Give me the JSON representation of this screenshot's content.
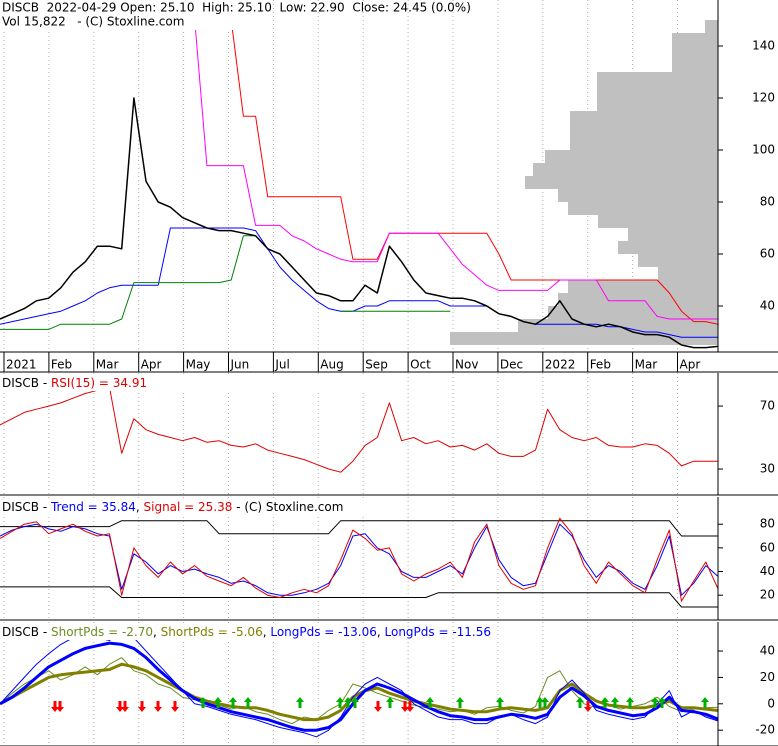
{
  "chart_data": [
    {
      "type": "line",
      "title": "DISCB  2022-04-29 Open: 25.10  High: 25.10  Low: 22.90  Close: 24.45 (0.0%)",
      "subtitle": "Vol 15,822   - (C) Stoxline.com",
      "xticks": [
        "2021",
        "Feb",
        "Mar",
        "Apr",
        "May",
        "Jun",
        "Jul",
        "Aug",
        "Sep",
        "Oct",
        "Nov",
        "Dec",
        "2022",
        "Feb",
        "Mar",
        "Apr"
      ],
      "ylim": [
        22.3,
        157.7
      ],
      "yticks": [
        40,
        60,
        80,
        100,
        120,
        140
      ],
      "volume_profile": {
        "color": "#c0c0c0",
        "xlim": [
          0,
          268
        ],
        "levels": [
          147.5,
          142.5,
          137.5,
          132.5,
          127.5,
          122.5,
          117.5,
          112.5,
          107.5,
          102.5,
          97.5,
          92.5,
          87.5,
          82.5,
          77.5,
          72.5,
          67.5,
          62.5,
          57.5,
          52.5,
          47.5,
          42.5,
          37.5,
          32.5,
          27.5
        ],
        "values": [
          13,
          46,
          46,
          46,
          121,
          121,
          121,
          148,
          148,
          148,
          173,
          185,
          193,
          160,
          150,
          120,
          90,
          100,
          80,
          60,
          150,
          160,
          170,
          200,
          268
        ]
      },
      "series": [
        {
          "color": "#ff0000",
          "line_width": 1,
          "values": [
            null,
            null,
            null,
            null,
            null,
            null,
            null,
            null,
            null,
            null,
            null,
            null,
            null,
            null,
            150,
            150,
            150,
            150,
            150,
            150,
            113,
            113,
            82,
            82,
            82,
            82,
            82,
            82,
            82,
            58,
            58,
            58,
            68,
            68,
            68,
            68,
            68,
            68,
            68,
            68,
            68,
            60,
            50,
            50,
            50,
            50,
            50,
            50,
            50,
            50,
            50,
            50,
            50,
            50,
            50,
            45,
            38,
            34,
            34,
            33
          ]
        },
        {
          "color": "#ff00ff",
          "line_width": 1,
          "values": [
            null,
            null,
            null,
            null,
            null,
            null,
            null,
            null,
            null,
            null,
            null,
            null,
            null,
            null,
            150,
            150,
            150,
            94,
            94,
            94,
            94,
            71,
            71,
            71,
            67,
            65,
            62,
            60,
            58,
            57,
            57,
            57,
            68,
            68,
            68,
            68,
            68,
            62,
            56,
            52,
            48,
            46,
            46,
            46,
            46,
            46,
            50,
            50,
            50,
            50,
            42,
            42,
            42,
            42,
            36,
            35,
            35,
            35,
            35,
            35
          ]
        },
        {
          "color": "#0000ff",
          "line_width": 1,
          "values": [
            33,
            34,
            35,
            36,
            37,
            38,
            40,
            42,
            45,
            47,
            48,
            48,
            48,
            48,
            70,
            70,
            70,
            70,
            70,
            70,
            70,
            69,
            62,
            55,
            50,
            46,
            42,
            39,
            38,
            38,
            40,
            40,
            42,
            42,
            42,
            42,
            42,
            40,
            40,
            40,
            40,
            37,
            36,
            34,
            33,
            33,
            33,
            33,
            33,
            33,
            32,
            32,
            31,
            30,
            30,
            29,
            28,
            28,
            28,
            28
          ]
        },
        {
          "color": "#008000",
          "line_width": 1,
          "values": [
            31,
            31,
            31,
            31,
            31,
            33,
            33,
            33,
            33,
            33,
            35,
            49,
            49,
            49,
            49,
            49,
            49,
            49,
            49,
            50,
            67,
            67,
            null,
            null,
            null,
            null,
            null,
            null,
            38,
            38,
            38,
            38,
            38,
            38,
            38,
            38,
            38,
            38,
            null,
            null,
            null,
            null,
            null,
            null,
            null,
            null,
            null,
            null,
            null,
            null,
            null,
            null,
            null,
            null,
            null,
            null,
            null,
            null,
            null,
            null
          ]
        },
        {
          "color": "#000000",
          "line_width": 1.5,
          "values": [
            35,
            37,
            39,
            42,
            43,
            47,
            53,
            57,
            63,
            63,
            62,
            120,
            88,
            80,
            78,
            74,
            72,
            70,
            69,
            69,
            68,
            67,
            62,
            60,
            55,
            50,
            45,
            44,
            42,
            42,
            48,
            45,
            63,
            57,
            50,
            45,
            44,
            43,
            43,
            42,
            40,
            37,
            36,
            34,
            33,
            36,
            42,
            35,
            33,
            32,
            33,
            32,
            30,
            29,
            29,
            28,
            25,
            24,
            24,
            24.45
          ]
        }
      ]
    },
    {
      "type": "line",
      "label": "DISCB - ",
      "ylim": [
        13.5,
        91
      ],
      "yticks": [
        30,
        70
      ],
      "series": [
        {
          "name": "RSI(15) = 34.91",
          "color": "#e00000",
          "line_width": 1,
          "values": [
            58,
            62,
            66,
            68,
            70,
            72,
            75,
            78,
            80,
            82,
            40,
            62,
            55,
            52,
            50,
            48,
            50,
            47,
            48,
            45,
            44,
            46,
            42,
            40,
            38,
            36,
            33,
            30,
            28,
            35,
            45,
            50,
            72,
            48,
            50,
            46,
            48,
            44,
            45,
            42,
            46,
            40,
            38,
            38,
            42,
            68,
            55,
            50,
            48,
            50,
            45,
            44,
            44,
            46,
            45,
            40,
            32,
            35,
            35,
            34.91
          ]
        }
      ]
    },
    {
      "type": "line",
      "label": "DISCB - ",
      "separator": ", ",
      "note": " - (C) Stoxline.com",
      "ylim": [
        -1,
        103
      ],
      "yticks": [
        20,
        40,
        60,
        80
      ],
      "series": [
        {
          "name": "Trend = 35.84",
          "color": "#0000ff",
          "line_width": 1,
          "values": [
            70,
            75,
            78,
            80,
            76,
            74,
            78,
            76,
            72,
            70,
            25,
            55,
            48,
            38,
            45,
            40,
            42,
            38,
            35,
            30,
            32,
            28,
            22,
            20,
            20,
            22,
            25,
            30,
            45,
            70,
            72,
            60,
            55,
            40,
            35,
            35,
            40,
            45,
            38,
            60,
            78,
            50,
            35,
            28,
            30,
            55,
            80,
            70,
            50,
            35,
            45,
            40,
            30,
            25,
            45,
            70,
            20,
            30,
            45,
            35.84
          ]
        },
        {
          "name": "Signal = 25.38",
          "color": "#e00000",
          "line_width": 1,
          "values": [
            68,
            74,
            80,
            82,
            72,
            76,
            80,
            74,
            70,
            72,
            20,
            60,
            45,
            35,
            48,
            38,
            45,
            36,
            32,
            28,
            35,
            26,
            20,
            18,
            22,
            25,
            22,
            28,
            50,
            75,
            68,
            58,
            60,
            38,
            32,
            38,
            42,
            48,
            35,
            65,
            80,
            45,
            30,
            25,
            28,
            60,
            85,
            72,
            45,
            30,
            48,
            38,
            28,
            22,
            50,
            75,
            15,
            32,
            48,
            25.38
          ]
        }
      ],
      "bands": {
        "color": "#000000",
        "upper": [
          78,
          78,
          78,
          78,
          78,
          78,
          78,
          78,
          78,
          78,
          83,
          83,
          83,
          83,
          83,
          83,
          83,
          83,
          72,
          72,
          72,
          72,
          72,
          72,
          72,
          72,
          72,
          72,
          83,
          83,
          83,
          83,
          83,
          83,
          83,
          83,
          83,
          83,
          83,
          83,
          83,
          83,
          83,
          83,
          83,
          83,
          83,
          83,
          83,
          83,
          83,
          83,
          83,
          83,
          83,
          83,
          70,
          70,
          70,
          70
        ],
        "lower": [
          27,
          27,
          27,
          27,
          27,
          27,
          27,
          27,
          27,
          27,
          18,
          18,
          18,
          18,
          18,
          18,
          18,
          18,
          18,
          18,
          18,
          18,
          18,
          18,
          18,
          18,
          18,
          18,
          18,
          18,
          18,
          18,
          18,
          18,
          18,
          18,
          22,
          22,
          22,
          22,
          22,
          22,
          22,
          22,
          22,
          22,
          22,
          22,
          22,
          22,
          22,
          22,
          22,
          22,
          22,
          22,
          10,
          10,
          10,
          10
        ]
      }
    },
    {
      "type": "line",
      "label": "DISCB - ",
      "separator": ", ",
      "ylim": [
        -32,
        62
      ],
      "yticks": [
        -20,
        0,
        20,
        40
      ],
      "series": [
        {
          "name": "ShortPds = -2.70",
          "color": "#6b8e23",
          "line_width": 1,
          "values": [
            0,
            8,
            15,
            20,
            25,
            18,
            22,
            28,
            22,
            30,
            35,
            25,
            22,
            15,
            12,
            5,
            3,
            0,
            -1,
            -4,
            -2,
            -6,
            -8,
            -12,
            -15,
            -10,
            -12,
            -5,
            0,
            15,
            12,
            8,
            5,
            2,
            -1,
            -3,
            -4,
            -6,
            -5,
            -8,
            -3,
            -2,
            -5,
            -7,
            -2,
            20,
            25,
            10,
            0,
            -3,
            -1,
            -4,
            -2,
            0,
            5,
            -2,
            -6,
            -4,
            -3,
            -2.7
          ]
        },
        {
          "name": "ShortPds = -5.06",
          "color": "#808000",
          "line_width": 3,
          "values": [
            0,
            5,
            10,
            15,
            20,
            22,
            23,
            24,
            25,
            26,
            30,
            28,
            25,
            20,
            15,
            10,
            5,
            2,
            0,
            -2,
            -3,
            -3,
            -5,
            -8,
            -10,
            -12,
            -12,
            -10,
            -5,
            5,
            10,
            12,
            8,
            5,
            2,
            0,
            -2,
            -4,
            -5,
            -6,
            -6,
            -4,
            -3,
            -4,
            -5,
            -3,
            10,
            15,
            8,
            2,
            -1,
            -2,
            -3,
            -3,
            -1,
            2,
            -3,
            -3,
            -4,
            -5.06
          ]
        },
        {
          "name": "LongPds = -13.06",
          "color": "#0000ff",
          "line_width": 1,
          "values": [
            0,
            10,
            20,
            30,
            38,
            45,
            50,
            52,
            50,
            48,
            55,
            50,
            40,
            30,
            20,
            10,
            0,
            -2,
            -5,
            -8,
            -10,
            -12,
            -15,
            -18,
            -20,
            -22,
            -25,
            -20,
            -10,
            5,
            15,
            20,
            15,
            10,
            0,
            -5,
            -10,
            -12,
            -12,
            -15,
            -15,
            -10,
            -8,
            -12,
            -15,
            -10,
            10,
            18,
            8,
            -5,
            -8,
            -10,
            -12,
            -10,
            0,
            10,
            -10,
            -5,
            -10,
            -13.06
          ]
        },
        {
          "name": "LongPds = -11.56",
          "color": "#0000ff",
          "line_width": 3,
          "values": [
            0,
            5,
            12,
            20,
            28,
            33,
            38,
            42,
            44,
            46,
            45,
            42,
            35,
            26,
            18,
            10,
            4,
            0,
            -3,
            -6,
            -8,
            -10,
            -12,
            -15,
            -18,
            -20,
            -20,
            -18,
            -12,
            0,
            10,
            15,
            12,
            8,
            3,
            -2,
            -6,
            -9,
            -10,
            -12,
            -12,
            -10,
            -8,
            -9,
            -11,
            -8,
            5,
            12,
            6,
            -2,
            -5,
            -7,
            -9,
            -8,
            -3,
            5,
            -5,
            -6,
            -8,
            -11.56
          ]
        }
      ]
    }
  ]
}
